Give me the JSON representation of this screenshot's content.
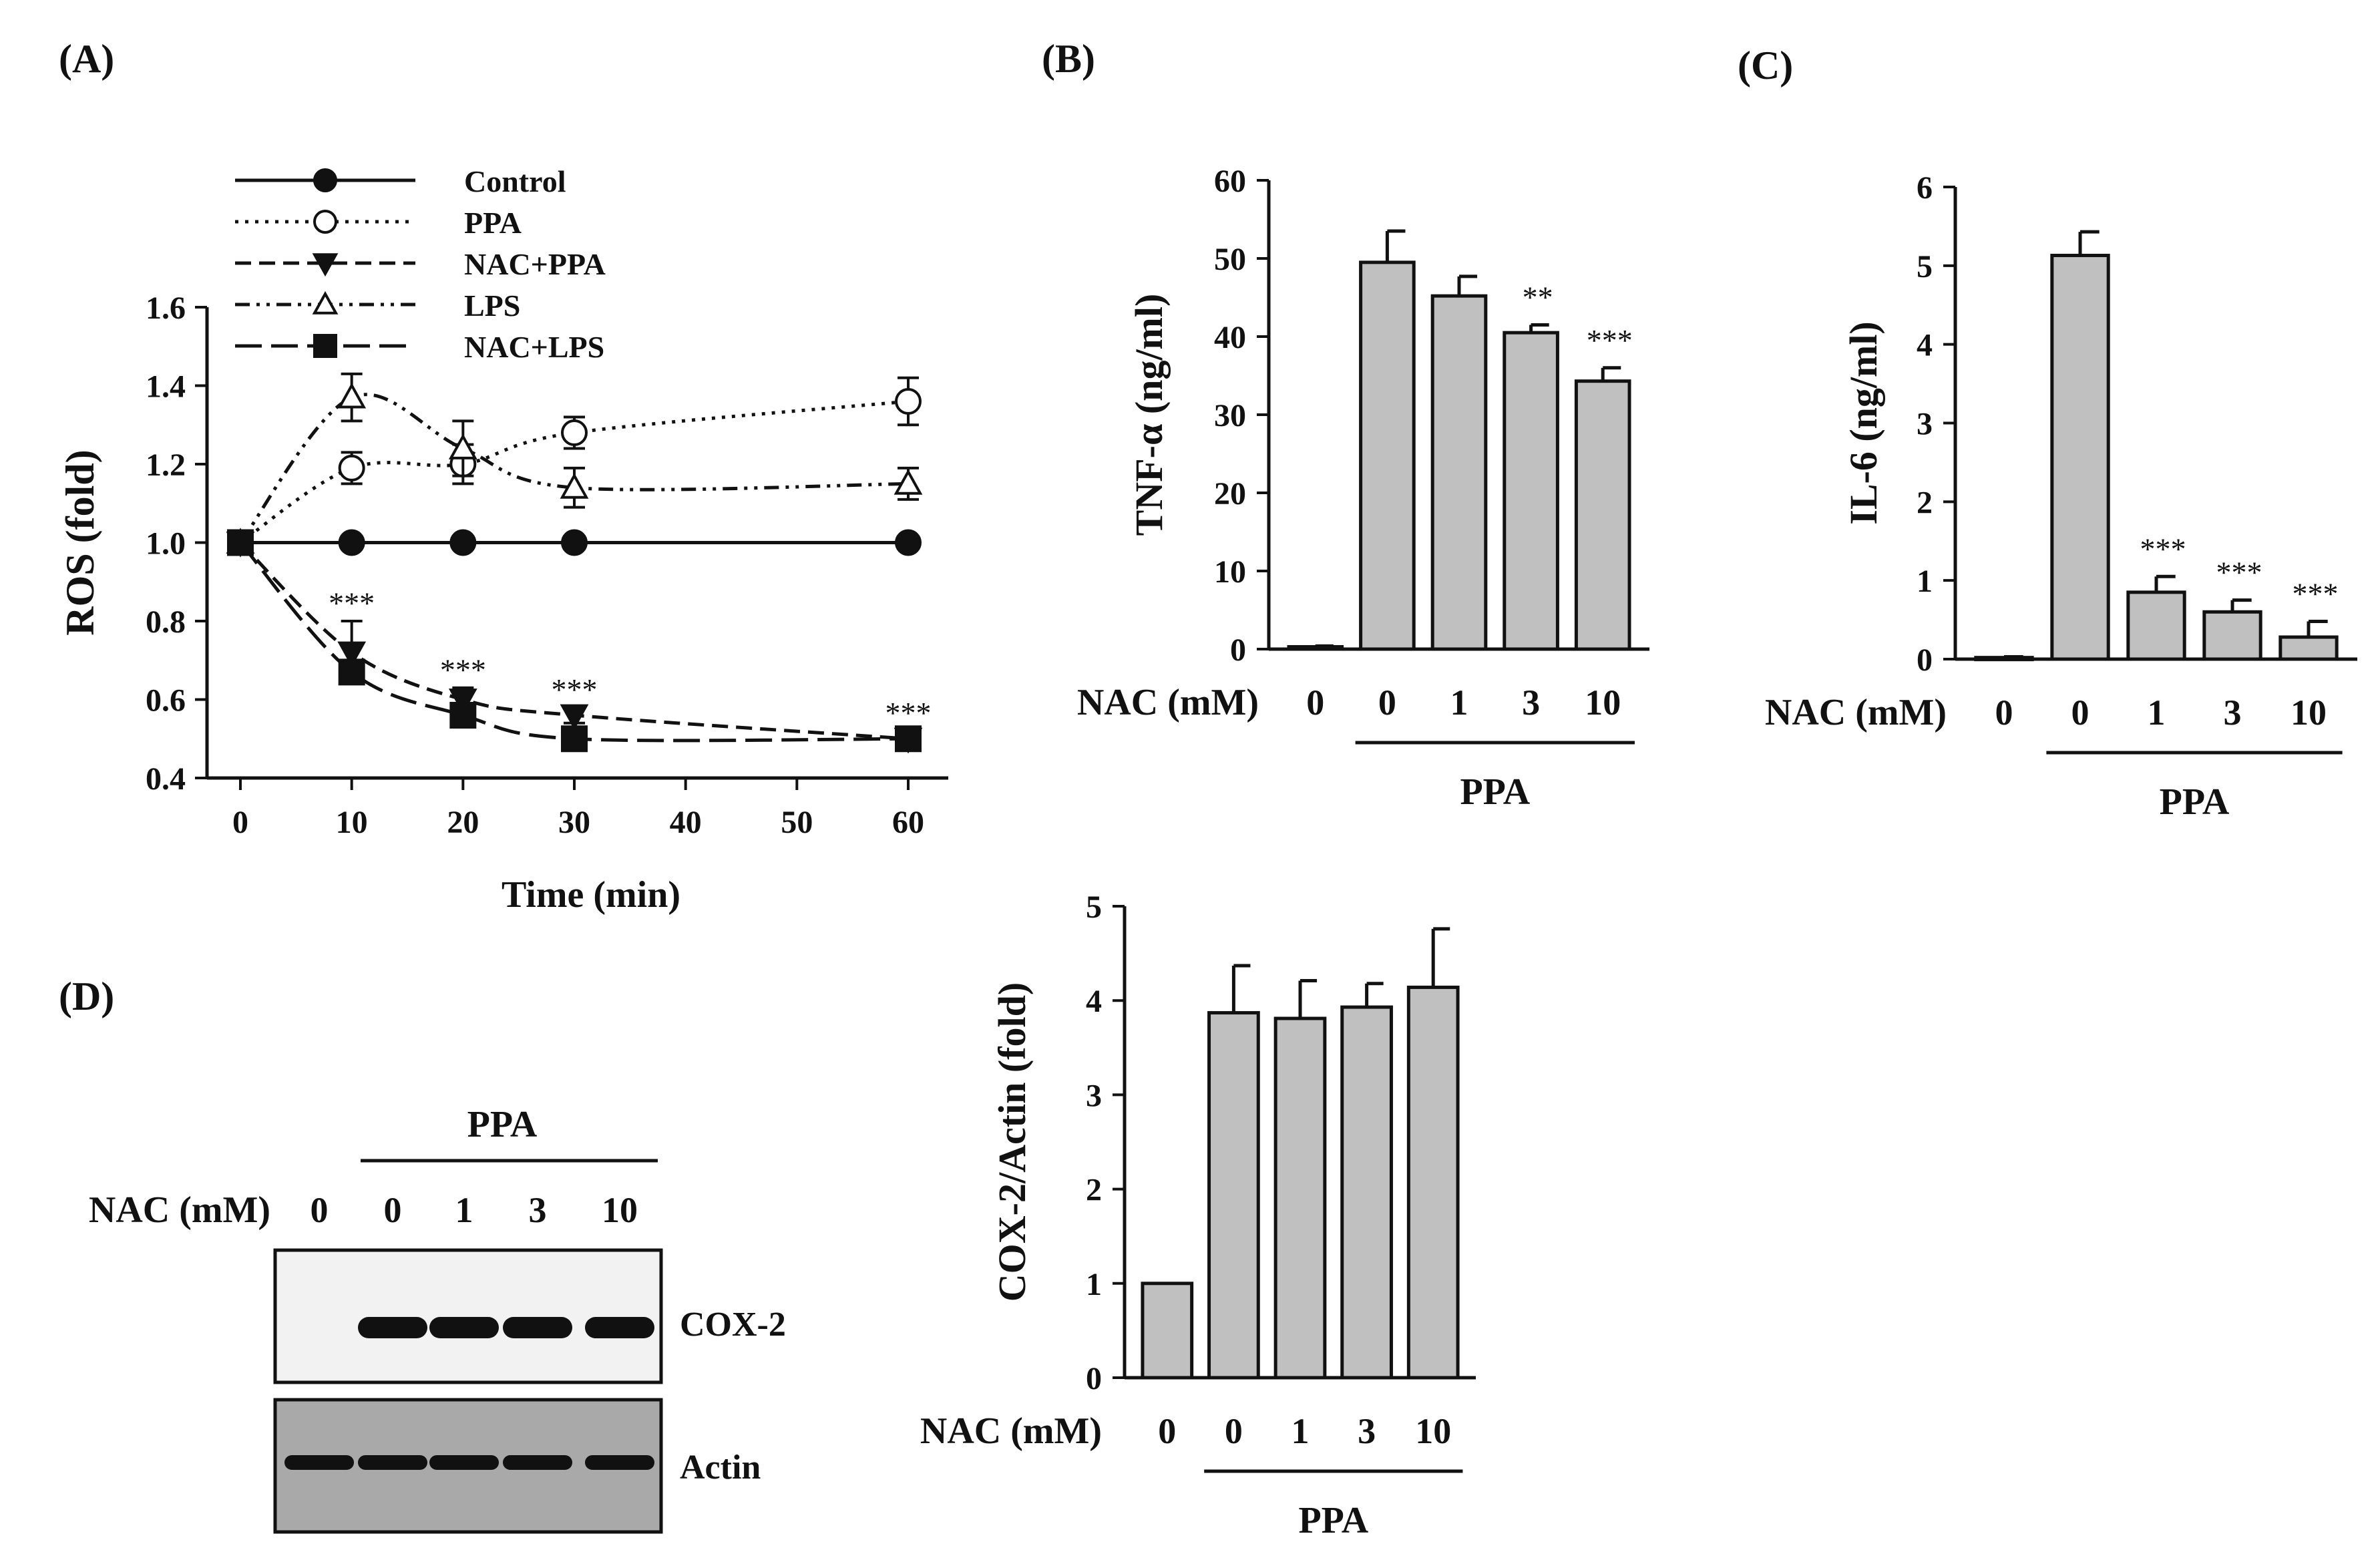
{
  "panel_labels": {
    "A": "(A)",
    "B": "(B)",
    "C": "(C)",
    "D": "(D)"
  },
  "colors": {
    "ink": "#111111",
    "bar": "#c0c0c0",
    "blot_bg": "#f2f2f2",
    "actin_bg": "#a9a9a9",
    "band": "#111111"
  },
  "chart_data": [
    {
      "id": "A",
      "type": "line",
      "title": "",
      "xlabel": "Time (min)",
      "ylabel": "ROS (fold)",
      "xlim": [
        0,
        60
      ],
      "ylim": [
        0.4,
        1.6
      ],
      "xticks": [
        "0",
        "10",
        "20",
        "30",
        "40",
        "50",
        "60"
      ],
      "yticks": [
        "0.4",
        "0.6",
        "0.8",
        "1.0",
        "1.2",
        "1.4",
        "1.6"
      ],
      "legend_position": "top-left",
      "x": [
        0,
        10,
        20,
        30,
        60
      ],
      "series": [
        {
          "name": "Control",
          "values": [
            1.0,
            1.0,
            1.0,
            1.0,
            1.0
          ],
          "errors": [
            0,
            0,
            0,
            0,
            0
          ],
          "marker": "filled-circle",
          "line": "solid"
        },
        {
          "name": "PPA",
          "values": [
            1.0,
            1.19,
            1.2,
            1.28,
            1.36
          ],
          "errors": [
            0,
            0.04,
            0.05,
            0.04,
            0.06
          ],
          "marker": "open-circle",
          "line": "dotted"
        },
        {
          "name": "NAC+PPA",
          "values": [
            1.0,
            0.72,
            0.6,
            0.56,
            0.5
          ],
          "errors": [
            0,
            0.08,
            0.03,
            0.02,
            0.02
          ],
          "marker": "filled-triangle-down",
          "line": "dashed"
        },
        {
          "name": "LPS",
          "values": [
            1.0,
            1.37,
            1.24,
            1.14,
            1.15
          ],
          "errors": [
            0,
            0.06,
            0.07,
            0.05,
            0.04
          ],
          "marker": "open-triangle-up",
          "line": "dash-dot-dot"
        },
        {
          "name": "NAC+LPS",
          "values": [
            1.0,
            0.67,
            0.56,
            0.5,
            0.5
          ],
          "errors": [
            0,
            0.02,
            0.02,
            0.02,
            0.02
          ],
          "marker": "filled-square",
          "line": "long-dash"
        }
      ],
      "annotations": [
        {
          "text": "***",
          "x": 10,
          "y": 0.84
        },
        {
          "text": "***",
          "x": 20,
          "y": 0.67
        },
        {
          "text": "***",
          "x": 30,
          "y": 0.62
        },
        {
          "text": "***",
          "x": 60,
          "y": 0.56
        }
      ]
    },
    {
      "id": "B",
      "type": "bar",
      "ylabel": "TNF-α (ng/ml)",
      "ylim": [
        0,
        60
      ],
      "yticks": [
        "0",
        "10",
        "20",
        "30",
        "40",
        "50",
        "60"
      ],
      "xlabel": "NAC (mM)",
      "categories": [
        "0",
        "0",
        "1",
        "3",
        "10"
      ],
      "values": [
        0.3,
        49.5,
        45.2,
        40.5,
        34.3
      ],
      "errors": [
        0.1,
        4.0,
        2.5,
        1.0,
        1.7
      ],
      "significance": [
        "",
        "",
        "",
        "**",
        "***"
      ],
      "group_label": "PPA"
    },
    {
      "id": "C",
      "type": "bar",
      "ylabel": "IL-6 (ng/ml)",
      "ylim": [
        0,
        6
      ],
      "yticks": [
        "0",
        "1",
        "2",
        "3",
        "4",
        "5",
        "6"
      ],
      "xlabel": "NAC (mM)",
      "categories": [
        "0",
        "0",
        "1",
        "3",
        "10"
      ],
      "values": [
        0.02,
        5.13,
        0.85,
        0.6,
        0.28
      ],
      "errors": [
        0.01,
        0.3,
        0.2,
        0.15,
        0.2
      ],
      "significance": [
        "",
        "",
        "***",
        "***",
        "***"
      ],
      "group_label": "PPA"
    },
    {
      "id": "D",
      "type": "bar",
      "ylabel": "COX-2/Actin (fold)",
      "ylim": [
        0,
        5
      ],
      "yticks": [
        "0",
        "1",
        "2",
        "3",
        "4",
        "5"
      ],
      "xlabel": "NAC (mM)",
      "categories": [
        "0",
        "0",
        "1",
        "3",
        "10"
      ],
      "values": [
        1.0,
        3.87,
        3.81,
        3.93,
        4.14
      ],
      "errors": [
        0,
        0.5,
        0.4,
        0.25,
        0.62
      ],
      "significance": [
        "",
        "",
        "",
        "",
        ""
      ],
      "group_label": "PPA"
    }
  ],
  "blot": {
    "group_label": "PPA",
    "lanes_label": "NAC (mM)",
    "lanes": [
      "0",
      "0",
      "1",
      "3",
      "10"
    ],
    "bands": [
      {
        "name": "COX-2",
        "intensities": [
          0,
          1,
          1,
          1,
          1
        ]
      },
      {
        "name": "Actin",
        "intensities": [
          1,
          1,
          1,
          1,
          1
        ]
      }
    ]
  }
}
